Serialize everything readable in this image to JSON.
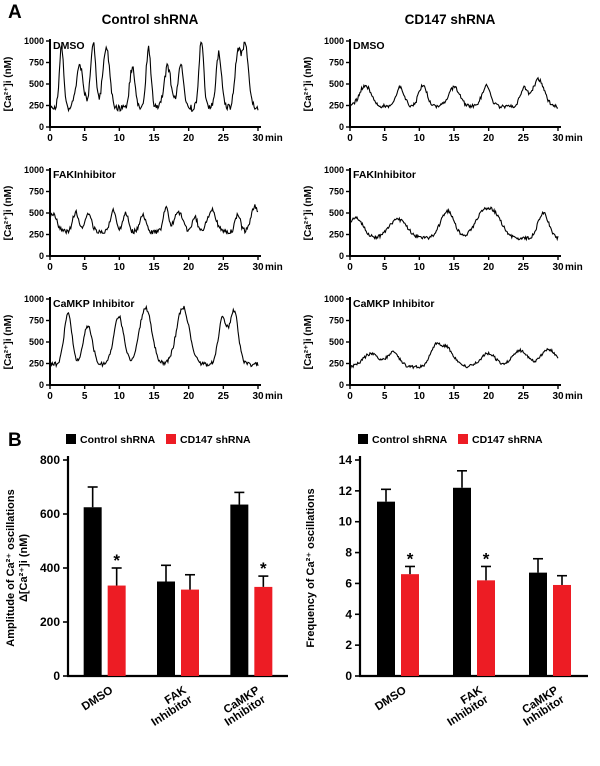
{
  "figure": {
    "panel_a": "A",
    "panel_b": "B",
    "column_headers": [
      "Control  shRNA",
      "CD147 shRNA"
    ]
  },
  "colors": {
    "control_series": "#000000",
    "cd147_series": "#ed1c24",
    "axis": "#000000",
    "trace": "#000000"
  },
  "legend": {
    "control": "Control shRNA",
    "cd147": "CD147 shRNA"
  },
  "chart_data": [
    {
      "type": "line",
      "id": "control-dmso",
      "group": "Control shRNA",
      "title": "DMSO",
      "ylabel": "[Ca²⁺]i (nM)",
      "xunit": "min",
      "xlim": [
        0,
        30
      ],
      "ylim": [
        0,
        1000
      ],
      "xticks": [
        0,
        5,
        10,
        15,
        20,
        25,
        30
      ],
      "yticks": [
        0,
        250,
        500,
        750,
        1000
      ],
      "baseline": 220,
      "peak": 920,
      "oscillations": 12,
      "width": 0.42,
      "noise": 80,
      "seed": 11
    },
    {
      "type": "line",
      "id": "cd147-dmso",
      "group": "CD147 shRNA",
      "title": "DMSO",
      "ylabel": "[Ca²⁺]i (nM)",
      "xunit": "min",
      "xlim": [
        0,
        30
      ],
      "ylim": [
        0,
        1000
      ],
      "xticks": [
        0,
        5,
        10,
        15,
        20,
        25,
        30
      ],
      "yticks": [
        0,
        250,
        500,
        750,
        1000
      ],
      "baseline": 240,
      "peak": 520,
      "oscillations": 7,
      "width": 0.7,
      "noise": 45,
      "seed": 22
    },
    {
      "type": "line",
      "id": "control-fak",
      "group": "Control shRNA",
      "title": "FAKInhibitor",
      "ylabel": "[Ca²⁺]i (nM)",
      "xunit": "min",
      "xlim": [
        0,
        30
      ],
      "ylim": [
        0,
        1000
      ],
      "xticks": [
        0,
        5,
        10,
        15,
        20,
        25,
        30
      ],
      "yticks": [
        0,
        250,
        500,
        750,
        1000
      ],
      "baseline": 280,
      "peak": 545,
      "oscillations": 12,
      "width": 0.5,
      "noise": 55,
      "seed": 33
    },
    {
      "type": "line",
      "id": "cd147-fak",
      "group": "CD147 shRNA",
      "title": "FAKInhibitor",
      "ylabel": "[Ca²⁺]i (nM)",
      "xunit": "min",
      "xlim": [
        0,
        30
      ],
      "ylim": [
        0,
        1000
      ],
      "xticks": [
        0,
        5,
        10,
        15,
        20,
        25,
        30
      ],
      "yticks": [
        0,
        250,
        500,
        750,
        1000
      ],
      "baseline": 205,
      "peak": 490,
      "oscillations": 6,
      "width": 1.0,
      "noise": 40,
      "seed": 44
    },
    {
      "type": "line",
      "id": "control-camkp",
      "group": "Control shRNA",
      "title": "CaMKP Inhibitor",
      "ylabel": "[Ca²⁺]i (nM)",
      "xunit": "min",
      "xlim": [
        0,
        30
      ],
      "ylim": [
        0,
        1000
      ],
      "xticks": [
        0,
        5,
        10,
        15,
        20,
        25,
        30
      ],
      "yticks": [
        0,
        250,
        500,
        750,
        1000
      ],
      "baseline": 240,
      "peak": 860,
      "oscillations": 7,
      "width": 0.75,
      "noise": 50,
      "seed": 55
    },
    {
      "type": "line",
      "id": "cd147-camkp",
      "group": "CD147 shRNA",
      "title": "CaMKP Inhibitor",
      "ylabel": "[Ca²⁺]i (nM)",
      "xunit": "min",
      "xlim": [
        0,
        30
      ],
      "ylim": [
        0,
        1000
      ],
      "xticks": [
        0,
        5,
        10,
        15,
        20,
        25,
        30
      ],
      "yticks": [
        0,
        250,
        500,
        750,
        1000
      ],
      "baseline": 210,
      "peak": 435,
      "oscillations": 7,
      "width": 0.9,
      "noise": 35,
      "seed": 66
    },
    {
      "type": "bar",
      "id": "amplitude",
      "ylabel_lines": [
        "Amplitude of  Ca²⁺ oscillations",
        "Δ[Ca²⁺]i (nM)"
      ],
      "categories": [
        [
          "DMSO"
        ],
        [
          "FAK",
          "Inhibitor"
        ],
        [
          "CaMKP",
          "Inhibitor"
        ]
      ],
      "ylim": [
        0,
        800
      ],
      "yticks": [
        0,
        200,
        400,
        600,
        800
      ],
      "left_margin": 68,
      "series": [
        {
          "name": "Control shRNA",
          "color_key": "control_series",
          "values": [
            625,
            350,
            635
          ],
          "errors": [
            75,
            60,
            45
          ],
          "significant": [
            false,
            false,
            false
          ]
        },
        {
          "name": "CD147 shRNA",
          "color_key": "cd147_series",
          "values": [
            335,
            320,
            330
          ],
          "errors": [
            65,
            55,
            40
          ],
          "significant": [
            true,
            false,
            true
          ]
        }
      ]
    },
    {
      "type": "bar",
      "id": "frequency",
      "ylabel_lines": [
        "Frequency of  Ca²⁺ oscillations"
      ],
      "categories": [
        [
          "DMSO"
        ],
        [
          "FAK",
          "Inhibitor"
        ],
        [
          "CaMKP",
          "Inhibitor"
        ]
      ],
      "ylim": [
        0,
        14
      ],
      "yticks": [
        0,
        2,
        4,
        6,
        8,
        10,
        12,
        14
      ],
      "left_margin": 60,
      "series": [
        {
          "name": "Control shRNA",
          "color_key": "control_series",
          "values": [
            11.3,
            12.2,
            6.7
          ],
          "errors": [
            0.8,
            1.1,
            0.9
          ],
          "significant": [
            false,
            false,
            false
          ]
        },
        {
          "name": "CD147 shRNA",
          "color_key": "cd147_series",
          "values": [
            6.6,
            6.2,
            5.9
          ],
          "errors": [
            0.5,
            0.9,
            0.6
          ],
          "significant": [
            true,
            true,
            false
          ]
        }
      ]
    }
  ]
}
